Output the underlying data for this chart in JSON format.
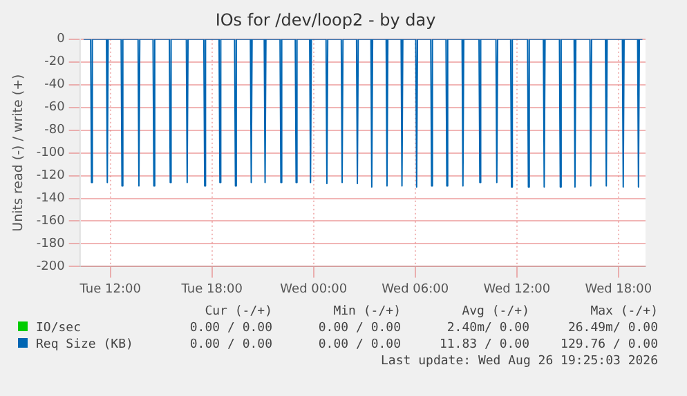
{
  "chart_data": {
    "type": "line",
    "title": "IOs for /dev/loop2 - by day",
    "ylabel": "Units read (-) / write (+)",
    "xlim": [
      "2026-08-25T10:12",
      "2026-08-26T19:36"
    ],
    "xticks": [
      {
        "value": "2026-08-25T12:00",
        "label": "Tue 12:00"
      },
      {
        "value": "2026-08-25T18:00",
        "label": "Tue 18:00"
      },
      {
        "value": "2026-08-26T00:00",
        "label": "Wed 00:00"
      },
      {
        "value": "2026-08-26T06:00",
        "label": "Wed 06:00"
      },
      {
        "value": "2026-08-26T12:00",
        "label": "Wed 12:00"
      },
      {
        "value": "2026-08-26T18:00",
        "label": "Wed 18:00"
      }
    ],
    "ylim": [
      -200,
      0
    ],
    "yticks": [
      -200,
      -180,
      -160,
      -140,
      -120,
      -100,
      -80,
      -60,
      -40,
      -20,
      0
    ],
    "grid": true,
    "legend": "bottom",
    "marker": "none",
    "line_style": "solid",
    "series": [
      {
        "name": "IO/sec",
        "color": "#00cc00"
      },
      {
        "name": "Req Size (KB)",
        "color": "#0066b3",
        "x": [
          "2026-08-25T10:25",
          "2026-08-25T10:50",
          "2026-08-25T10:53",
          "2026-08-25T10:56",
          "2026-08-25T11:46",
          "2026-08-25T11:49",
          "2026-08-25T11:52",
          "2026-08-25T12:38",
          "2026-08-25T12:41",
          "2026-08-25T12:44",
          "2026-08-25T13:38",
          "2026-08-25T13:41",
          "2026-08-25T13:44",
          "2026-08-25T14:31",
          "2026-08-25T14:34",
          "2026-08-25T14:37",
          "2026-08-25T15:29",
          "2026-08-25T15:32",
          "2026-08-25T15:35",
          "2026-08-25T16:29",
          "2026-08-25T16:32",
          "2026-08-25T16:35",
          "2026-08-25T17:31",
          "2026-08-25T17:34",
          "2026-08-25T17:37",
          "2026-08-25T18:25",
          "2026-08-25T18:28",
          "2026-08-25T18:31",
          "2026-08-25T19:20",
          "2026-08-25T19:23",
          "2026-08-25T19:26",
          "2026-08-25T20:16",
          "2026-08-25T20:19",
          "2026-08-25T20:22",
          "2026-08-25T21:05",
          "2026-08-25T21:08",
          "2026-08-25T21:11",
          "2026-08-25T22:01",
          "2026-08-25T22:04",
          "2026-08-25T22:07",
          "2026-08-25T22:55",
          "2026-08-25T22:58",
          "2026-08-25T23:01",
          "2026-08-25T23:46",
          "2026-08-25T23:49",
          "2026-08-25T23:52",
          "2026-08-26T00:44",
          "2026-08-26T00:47",
          "2026-08-26T00:50",
          "2026-08-26T01:38",
          "2026-08-26T01:41",
          "2026-08-26T01:44",
          "2026-08-26T02:32",
          "2026-08-26T02:35",
          "2026-08-26T02:38",
          "2026-08-26T03:23",
          "2026-08-26T03:26",
          "2026-08-26T03:29",
          "2026-08-26T04:17",
          "2026-08-26T04:20",
          "2026-08-26T04:23",
          "2026-08-26T05:10",
          "2026-08-26T05:13",
          "2026-08-26T05:16",
          "2026-08-26T06:02",
          "2026-08-26T06:05",
          "2026-08-26T06:08",
          "2026-08-26T06:55",
          "2026-08-26T06:58",
          "2026-08-26T07:01",
          "2026-08-26T07:49",
          "2026-08-26T07:52",
          "2026-08-26T07:55",
          "2026-08-26T08:46",
          "2026-08-26T08:49",
          "2026-08-26T08:52",
          "2026-08-26T09:46",
          "2026-08-26T09:49",
          "2026-08-26T09:52",
          "2026-08-26T10:46",
          "2026-08-26T10:49",
          "2026-08-26T10:52",
          "2026-08-26T11:38",
          "2026-08-26T11:41",
          "2026-08-26T11:44",
          "2026-08-26T12:38",
          "2026-08-26T12:41",
          "2026-08-26T12:44",
          "2026-08-26T13:34",
          "2026-08-26T13:37",
          "2026-08-26T13:40",
          "2026-08-26T14:31",
          "2026-08-26T14:34",
          "2026-08-26T14:37",
          "2026-08-26T15:23",
          "2026-08-26T15:26",
          "2026-08-26T15:29",
          "2026-08-26T16:19",
          "2026-08-26T16:22",
          "2026-08-26T16:25",
          "2026-08-26T17:14",
          "2026-08-26T17:17",
          "2026-08-26T17:20",
          "2026-08-26T18:14",
          "2026-08-26T18:17",
          "2026-08-26T18:20",
          "2026-08-26T19:08",
          "2026-08-26T19:11",
          "2026-08-26T19:14",
          "2026-08-26T19:25"
        ],
        "values": [
          0,
          0,
          -126,
          0,
          0,
          -126,
          0,
          0,
          -129,
          0,
          0,
          -129,
          0,
          0,
          -129,
          0,
          0,
          -126,
          0,
          0,
          -126,
          0,
          0,
          -129,
          0,
          0,
          -126,
          0,
          0,
          -129,
          0,
          0,
          -126,
          0,
          0,
          -126,
          0,
          0,
          -126,
          0,
          0,
          -126,
          0,
          0,
          -126,
          0,
          0,
          -127,
          0,
          0,
          -126,
          0,
          0,
          -127,
          0,
          0,
          -130,
          0,
          0,
          -129,
          0,
          0,
          -129,
          0,
          0,
          -130,
          0,
          0,
          -129,
          0,
          0,
          -129,
          0,
          0,
          -129,
          0,
          0,
          -126,
          0,
          0,
          -126,
          0,
          0,
          -130,
          0,
          0,
          -130,
          0,
          0,
          -130,
          0,
          0,
          -130,
          0,
          0,
          -130,
          0,
          0,
          -129,
          0,
          0,
          -129,
          0,
          0,
          -130,
          0,
          0,
          -130,
          0,
          0
        ]
      }
    ],
    "annotations": [
      "Cur (-/+)",
      "Min (-/+)",
      "Avg (-/+)",
      "Max (-/+)",
      "0.00 / 0.00",
      "0.00 / 0.00",
      "2.40m/ 0.00",
      "26.49m/ 0.00",
      "0.00 / 0.00",
      "0.00 / 0.00",
      "11.83 / 0.00",
      "129.76 / 0.00",
      "Last update: Wed Aug 26 19:25:03 2026"
    ]
  }
}
